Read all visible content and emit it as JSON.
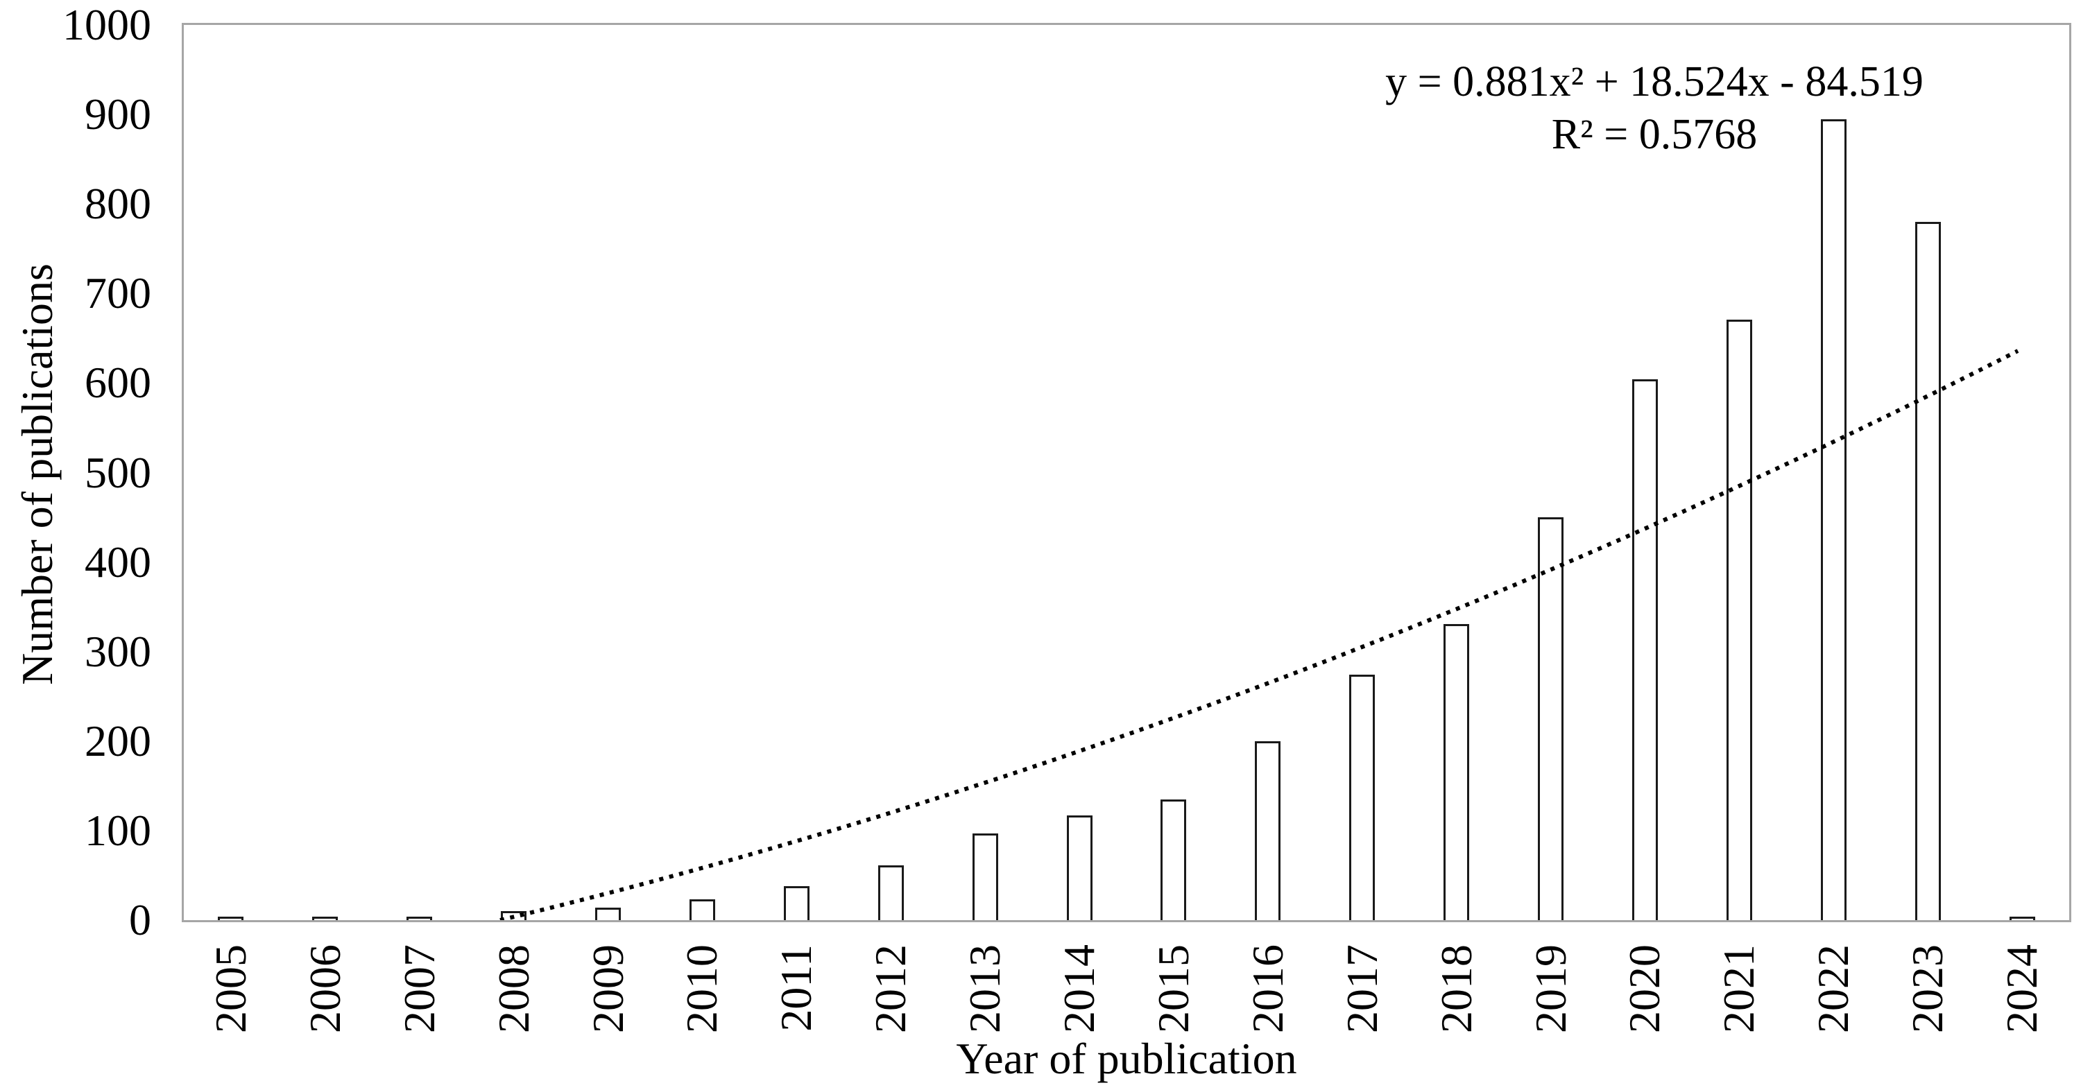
{
  "chart_data": {
    "type": "bar",
    "title": "",
    "xlabel": "Year of publication",
    "ylabel": "Number of publications",
    "categories": [
      "2005",
      "2006",
      "2007",
      "2008",
      "2009",
      "2010",
      "2011",
      "2012",
      "2013",
      "2014",
      "2015",
      "2016",
      "2017",
      "2018",
      "2019",
      "2020",
      "2021",
      "2022",
      "2023",
      "2024"
    ],
    "values": [
      2,
      3,
      3,
      10,
      14,
      23,
      38,
      61,
      97,
      117,
      135,
      200,
      274,
      331,
      450,
      604,
      671,
      895,
      780,
      4
    ],
    "ylim": [
      0,
      1000
    ],
    "ytick_interval": 100,
    "yticks": [
      0,
      100,
      200,
      300,
      400,
      500,
      600,
      700,
      800,
      900,
      1000
    ],
    "grid": "off",
    "legend": "none",
    "bar_fill": "#ffffff",
    "bar_stroke": "#1a1a1a",
    "axis_color": "#a6a6a6",
    "trendline": {
      "type": "polynomial",
      "order": 2,
      "coefficients": {
        "a": 0.881,
        "b": 18.524,
        "c": -84.519
      },
      "equation_label": "y = 0.881x² + 18.524x - 84.519",
      "r_squared_label": "R² = 0.5768",
      "line_style": "dotted",
      "color": "#000000"
    }
  }
}
